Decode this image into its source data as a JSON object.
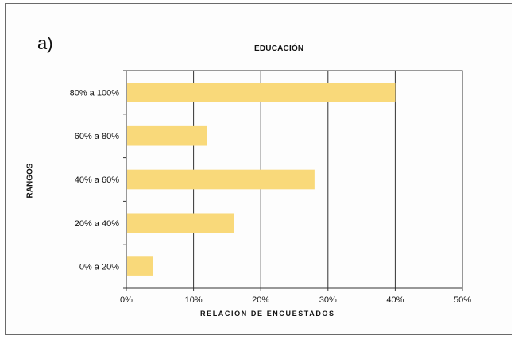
{
  "panel_label": "a)",
  "chart_data": {
    "type": "bar",
    "orientation": "horizontal",
    "title": "EDUCACIÓN",
    "xlabel": "RELACION DE ENCUESTADOS",
    "ylabel": "RANGOS",
    "categories": [
      "80% a 100%",
      "60% a 80%",
      "40% a 60%",
      "20% a 40%",
      "0% a 20%"
    ],
    "values": [
      40,
      12,
      28,
      16,
      4
    ],
    "xlim": [
      0,
      50
    ],
    "xticks": [
      "0%",
      "10%",
      "20%",
      "30%",
      "40%",
      "50%"
    ],
    "grid": "vertical",
    "bar_color": "#f9d97a"
  }
}
